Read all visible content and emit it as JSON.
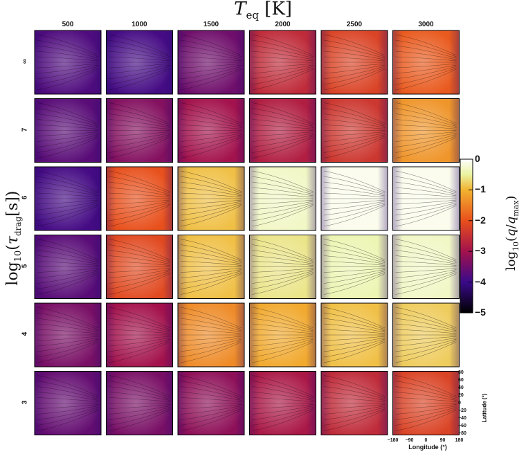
{
  "chart_data": {
    "type": "heatmap",
    "title": "T_eq [K]",
    "ylabel": "log10(τ_drag[s])",
    "columns": [
      "500",
      "1000",
      "1500",
      "2000",
      "2500",
      "3000"
    ],
    "rows": [
      "∞",
      "7",
      "6",
      "5",
      "4",
      "3"
    ],
    "colorbar": {
      "label": "log10(q/q_max)",
      "ticks": [
        "0",
        "−1",
        "−2",
        "−3",
        "−4",
        "−5"
      ],
      "range": [
        -5,
        0
      ]
    },
    "values": [
      [
        -3.8,
        -3.9,
        -3.5,
        -2.6,
        -2.2,
        -1.9
      ],
      [
        -3.7,
        -3.3,
        -3.0,
        -2.8,
        -2.4,
        -1.3
      ],
      [
        -3.9,
        -2.0,
        -0.9,
        -0.3,
        -0.1,
        -0.1
      ],
      [
        -3.7,
        -2.1,
        -0.9,
        -0.6,
        -0.4,
        -0.3
      ],
      [
        -3.4,
        -3.0,
        -1.4,
        -1.1,
        -0.9,
        -0.8
      ],
      [
        -3.6,
        -3.4,
        -3.2,
        -2.9,
        -2.6,
        -2.2
      ]
    ],
    "latitude_axis": {
      "label": "Latitude (°)",
      "ticks": [
        "80",
        "60",
        "40",
        "20",
        "0",
        "−20",
        "−40",
        "−60",
        "−80"
      ]
    },
    "longitude_axis": {
      "label": "Longitude (°)",
      "ticks": [
        "−180",
        "−90",
        "0",
        "90",
        "180"
      ]
    }
  }
}
